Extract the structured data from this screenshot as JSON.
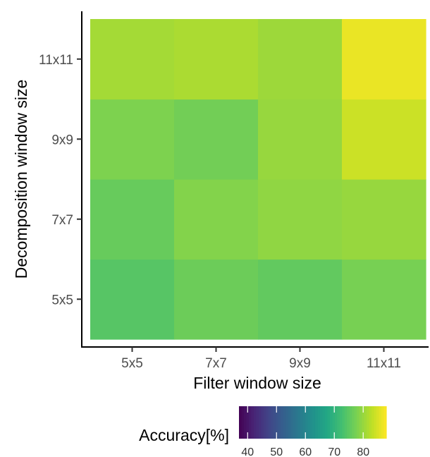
{
  "chart_data": {
    "type": "heatmap",
    "x_categories": [
      "5x5",
      "7x7",
      "9x9",
      "11x11"
    ],
    "y_categories": [
      "5x5",
      "7x7",
      "9x9",
      "11x11"
    ],
    "xlabel": "Filter window size",
    "ylabel": "Decomposition window size",
    "cells": [
      {
        "x": "5x5",
        "y": "5x5",
        "value": 74.5
      },
      {
        "x": "7x7",
        "y": "5x5",
        "value": 76.5
      },
      {
        "x": "9x9",
        "y": "5x5",
        "value": 75.5
      },
      {
        "x": "11x11",
        "y": "5x5",
        "value": 77.5
      },
      {
        "x": "5x5",
        "y": "7x7",
        "value": 76.0
      },
      {
        "x": "7x7",
        "y": "7x7",
        "value": 78.5
      },
      {
        "x": "9x9",
        "y": "7x7",
        "value": 79.5
      },
      {
        "x": "11x11",
        "y": "7x7",
        "value": 80.0
      },
      {
        "x": "5x5",
        "y": "9x9",
        "value": 78.0
      },
      {
        "x": "7x7",
        "y": "9x9",
        "value": 77.0
      },
      {
        "x": "9x9",
        "y": "9x9",
        "value": 80.0
      },
      {
        "x": "11x11",
        "y": "9x9",
        "value": 84.0
      },
      {
        "x": "5x5",
        "y": "11x11",
        "value": 81.0
      },
      {
        "x": "7x7",
        "y": "11x11",
        "value": 81.5
      },
      {
        "x": "9x9",
        "y": "11x11",
        "value": 80.5
      },
      {
        "x": "11x11",
        "y": "11x11",
        "value": 86.5
      }
    ],
    "legend": {
      "title": "Accuracy[%]",
      "ticks": [
        40,
        50,
        60,
        70,
        80
      ],
      "range": [
        37,
        88
      ],
      "colormap": "viridis",
      "placement": "bottom"
    },
    "grid": false
  }
}
